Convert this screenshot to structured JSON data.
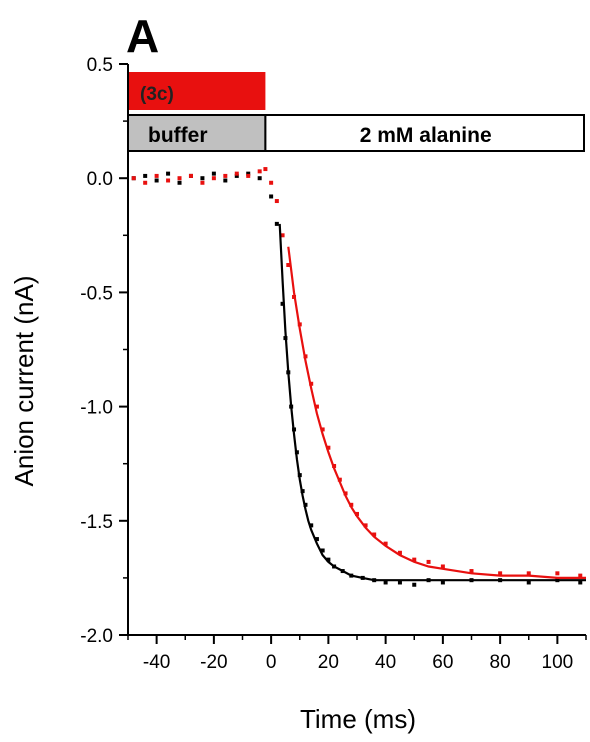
{
  "panel_label": "A",
  "bars": {
    "red_label": "(3c)",
    "buffer_label": "buffer",
    "alanine_label": "2 mM alanine"
  },
  "colors": {
    "red": "#e8100f",
    "black": "#000000",
    "buffer_fill": "#c0c0c0",
    "alanine_fill": "#ffffff"
  },
  "chart_data": {
    "type": "scatter",
    "title": "",
    "xlabel": "Time (ms)",
    "ylabel": "Anion current (nA)",
    "xlim": [
      -50,
      110
    ],
    "ylim": [
      -2.0,
      0.5
    ],
    "xticks": [
      -40,
      -20,
      0,
      20,
      40,
      60,
      80,
      100
    ],
    "yticks": [
      0.5,
      0.0,
      -0.5,
      -1.0,
      -1.5,
      -2.0
    ],
    "xtick_labels": [
      "-40",
      "-20",
      "0",
      "20",
      "40",
      "60",
      "80",
      "100"
    ],
    "ytick_labels": [
      "0.5",
      "0.0",
      "-0.5",
      "-1.0",
      "-1.5",
      "-2.0"
    ],
    "grid": false,
    "series": [
      {
        "color": "#000000",
        "style": "points",
        "x": [
          -48,
          -44,
          -40,
          -36,
          -32,
          -28,
          -24,
          -20,
          -16,
          -12,
          -8,
          -4,
          0,
          2,
          4,
          5,
          6,
          7,
          8,
          9,
          10,
          11,
          12,
          14,
          16,
          18,
          20,
          22,
          25,
          28,
          32,
          36,
          40,
          45,
          50,
          55,
          60,
          70,
          80,
          90,
          100,
          108
        ],
        "y": [
          0.0,
          0.01,
          -0.01,
          0.02,
          -0.02,
          0.01,
          0.0,
          0.02,
          -0.01,
          0.01,
          0.02,
          0.0,
          -0.08,
          -0.2,
          -0.55,
          -0.7,
          -0.85,
          -1.0,
          -1.1,
          -1.2,
          -1.3,
          -1.37,
          -1.43,
          -1.52,
          -1.58,
          -1.63,
          -1.67,
          -1.7,
          -1.72,
          -1.74,
          -1.75,
          -1.76,
          -1.77,
          -1.77,
          -1.78,
          -1.76,
          -1.77,
          -1.76,
          -1.76,
          -1.77,
          -1.76,
          -1.77
        ]
      },
      {
        "color": "#e8100f",
        "style": "points",
        "x": [
          -48,
          -44,
          -40,
          -36,
          -32,
          -28,
          -24,
          -20,
          -16,
          -12,
          -8,
          -4,
          -2,
          0,
          2,
          4,
          6,
          8,
          10,
          12,
          14,
          16,
          18,
          20,
          22,
          24,
          26,
          28,
          30,
          33,
          36,
          40,
          45,
          50,
          55,
          60,
          70,
          80,
          90,
          100,
          108
        ],
        "y": [
          0.0,
          -0.02,
          0.01,
          -0.01,
          0.0,
          0.01,
          -0.02,
          0.0,
          0.01,
          0.02,
          0.01,
          0.03,
          0.04,
          -0.02,
          -0.1,
          -0.25,
          -0.38,
          -0.52,
          -0.64,
          -0.78,
          -0.9,
          -1.0,
          -1.1,
          -1.18,
          -1.26,
          -1.32,
          -1.38,
          -1.43,
          -1.47,
          -1.52,
          -1.56,
          -1.6,
          -1.64,
          -1.67,
          -1.68,
          -1.7,
          -1.72,
          -1.73,
          -1.73,
          -1.73,
          -1.74
        ]
      },
      {
        "color": "#000000",
        "style": "line",
        "x": [
          3,
          4,
          5,
          6,
          7,
          8,
          9,
          10,
          11,
          12,
          13,
          14,
          16,
          18,
          20,
          22,
          25,
          28,
          32,
          36,
          40,
          50,
          60,
          80,
          100,
          110
        ],
        "y": [
          -0.2,
          -0.45,
          -0.67,
          -0.85,
          -1.0,
          -1.12,
          -1.23,
          -1.32,
          -1.39,
          -1.45,
          -1.5,
          -1.54,
          -1.6,
          -1.65,
          -1.68,
          -1.7,
          -1.72,
          -1.74,
          -1.75,
          -1.76,
          -1.76,
          -1.76,
          -1.76,
          -1.76,
          -1.76,
          -1.76
        ]
      },
      {
        "color": "#e8100f",
        "style": "line",
        "x": [
          6,
          8,
          10,
          12,
          14,
          16,
          18,
          20,
          22,
          24,
          26,
          28,
          30,
          33,
          36,
          40,
          45,
          50,
          55,
          60,
          70,
          80,
          90,
          100,
          110
        ],
        "y": [
          -0.3,
          -0.5,
          -0.66,
          -0.8,
          -0.92,
          -1.03,
          -1.12,
          -1.2,
          -1.27,
          -1.33,
          -1.39,
          -1.44,
          -1.48,
          -1.53,
          -1.57,
          -1.61,
          -1.65,
          -1.68,
          -1.7,
          -1.71,
          -1.73,
          -1.74,
          -1.74,
          -1.75,
          -1.75
        ]
      }
    ],
    "stimulus_bars": [
      {
        "label": "(3c)",
        "x_start": -50,
        "x_end": -2,
        "color": "#e8100f"
      },
      {
        "label": "buffer",
        "x_start": -50,
        "x_end": -2,
        "color": "#c0c0c0"
      },
      {
        "label": "2 mM alanine",
        "x_start": -2,
        "x_end": 110,
        "color": "#ffffff"
      }
    ]
  }
}
